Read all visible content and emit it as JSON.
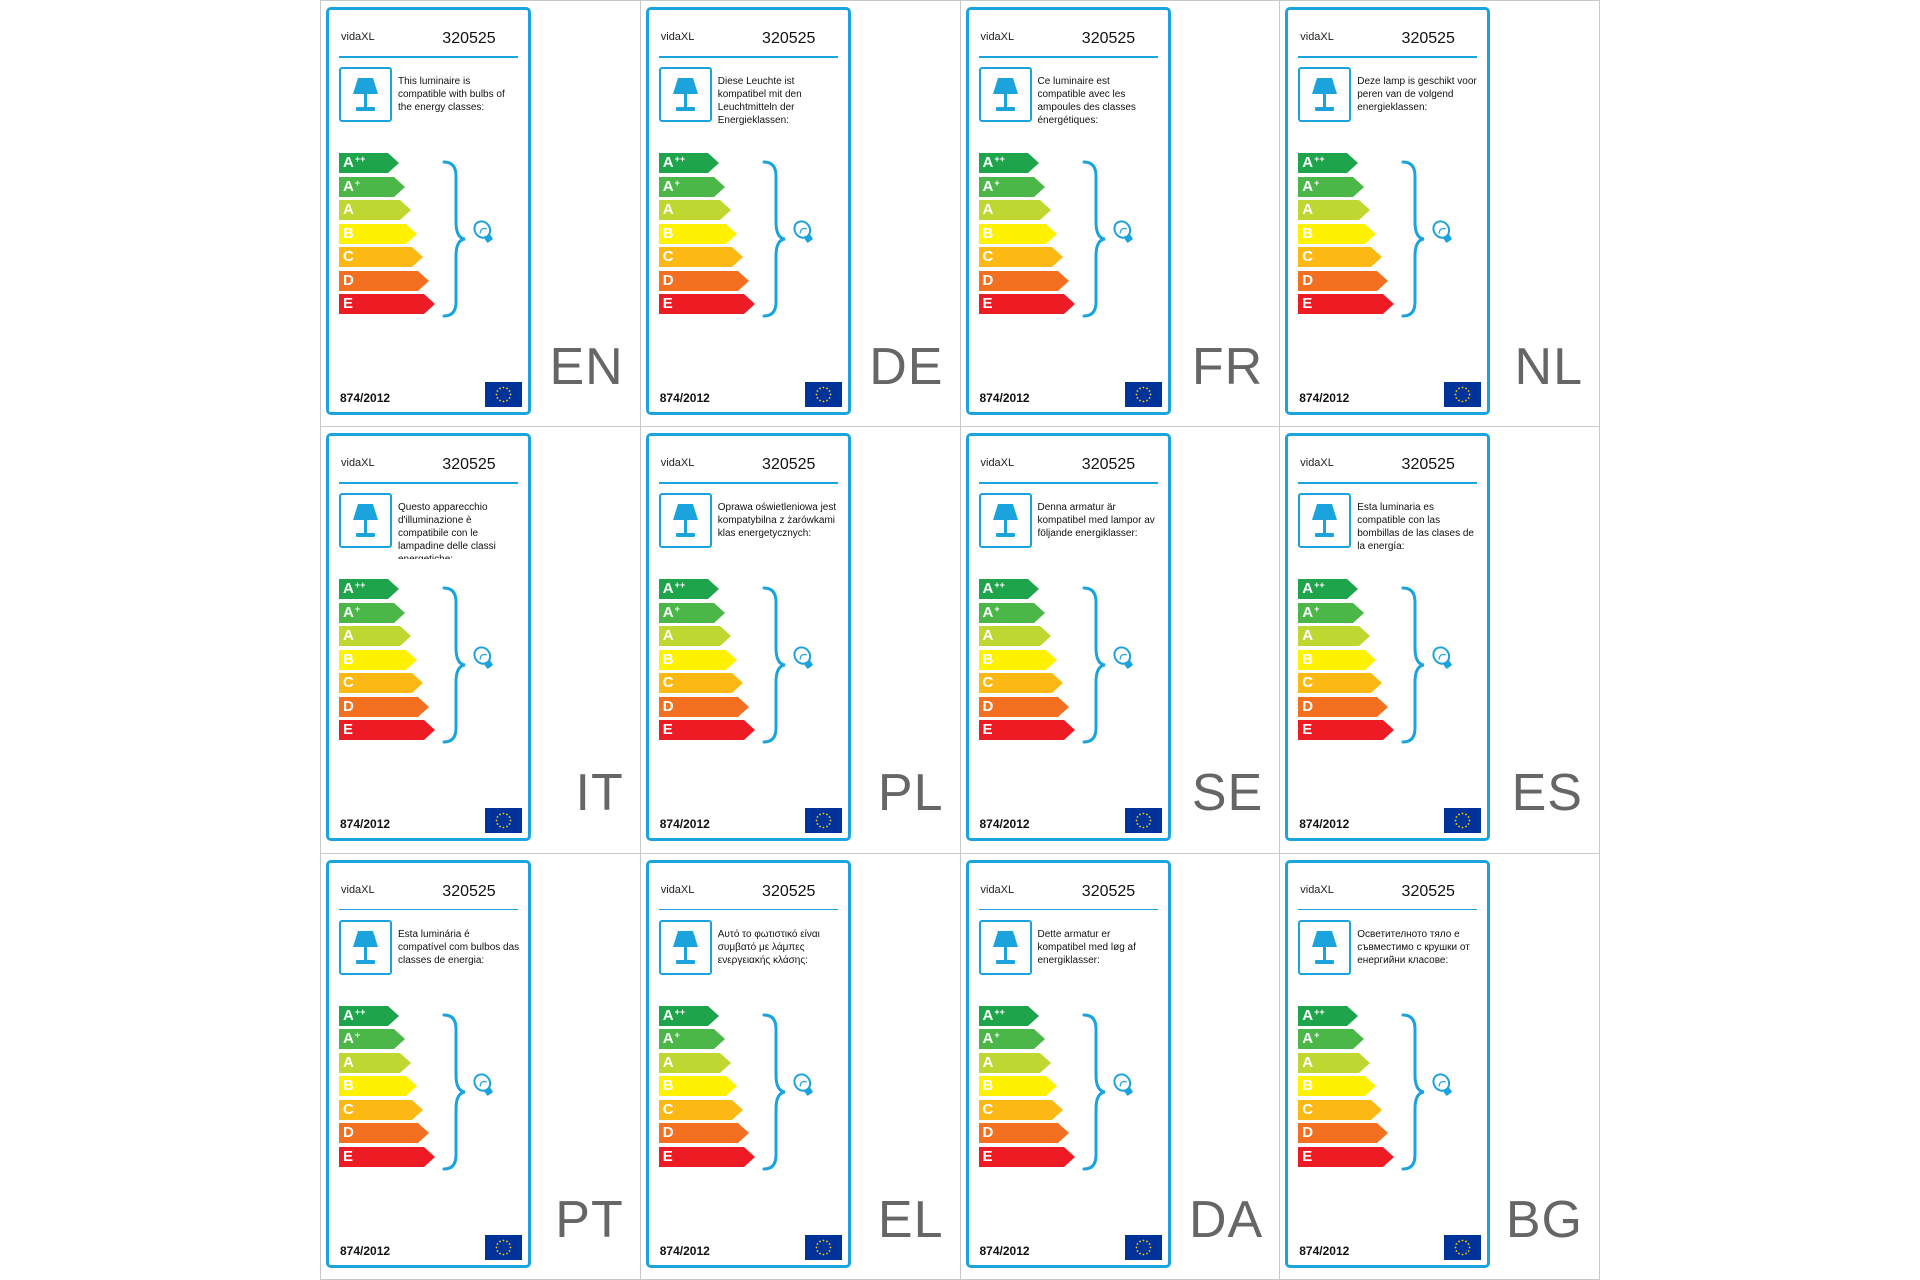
{
  "colors": {
    "accent": "#1ba3dd",
    "app": "#1ea54b",
    "ap": "#4bb748",
    "a": "#bfd730",
    "b": "#fff200",
    "c": "#fdb913",
    "d": "#f37021",
    "e": "#ed1c24"
  },
  "icons": {
    "lamp": "table-lamp-icon",
    "bulb": "light-bulb-icon",
    "flag": "eu-flag-icon"
  },
  "energy_classes": [
    {
      "letter": "A",
      "sup": "++"
    },
    {
      "letter": "A",
      "sup": "+"
    },
    {
      "letter": "A",
      "sup": ""
    },
    {
      "letter": "B",
      "sup": ""
    },
    {
      "letter": "C",
      "sup": ""
    },
    {
      "letter": "D",
      "sup": ""
    },
    {
      "letter": "E",
      "sup": ""
    }
  ],
  "labels": [
    {
      "lang": "EN",
      "brand": "vidaXL",
      "model": "320525",
      "regulation": "874/2012",
      "text": "This luminaire is compatible with bulbs of the energy classes:"
    },
    {
      "lang": "DE",
      "brand": "vidaXL",
      "model": "320525",
      "regulation": "874/2012",
      "text": "Diese Leuchte ist kompatibel mit den Leuchtmitteln der Energieklassen:"
    },
    {
      "lang": "FR",
      "brand": "vidaXL",
      "model": "320525",
      "regulation": "874/2012",
      "text": "Ce luminaire est compatible avec les ampoules des classes énergétiques:"
    },
    {
      "lang": "NL",
      "brand": "vidaXL",
      "model": "320525",
      "regulation": "874/2012",
      "text": "Deze lamp is geschikt voor peren van de volgend energieklassen:"
    },
    {
      "lang": "IT",
      "brand": "vidaXL",
      "model": "320525",
      "regulation": "874/2012",
      "text": "Questo apparecchio d'illuminazione è compatibile con le lampadine delle classi energetiche:"
    },
    {
      "lang": "PL",
      "brand": "vidaXL",
      "model": "320525",
      "regulation": "874/2012",
      "text": "Oprawa oświetleniowa jest kompatybilna z żarówkami klas energetycznych:"
    },
    {
      "lang": "SE",
      "brand": "vidaXL",
      "model": "320525",
      "regulation": "874/2012",
      "text": "Denna armatur är kompatibel med lampor av följande energiklasser:"
    },
    {
      "lang": "ES",
      "brand": "vidaXL",
      "model": "320525",
      "regulation": "874/2012",
      "text": "Esta luminaria es compatible con las bombillas de las clases de la energía:"
    },
    {
      "lang": "PT",
      "brand": "vidaXL",
      "model": "320525",
      "regulation": "874/2012",
      "text": "Esta luminária é compatível com bulbos das classes de energia:"
    },
    {
      "lang": "EL",
      "brand": "vidaXL",
      "model": "320525",
      "regulation": "874/2012",
      "text": "Αυτό το φωτιστικό είναι συμβατό με λάμπες ενεργειακής κλάσης:"
    },
    {
      "lang": "DA",
      "brand": "vidaXL",
      "model": "320525",
      "regulation": "874/2012",
      "text": "Dette armatur er kompatibel med løg af energiklasser:"
    },
    {
      "lang": "BG",
      "brand": "vidaXL",
      "model": "320525",
      "regulation": "874/2012",
      "text": "Осветителното тяло е съвместимо с крушки от енергийни класове:"
    }
  ]
}
